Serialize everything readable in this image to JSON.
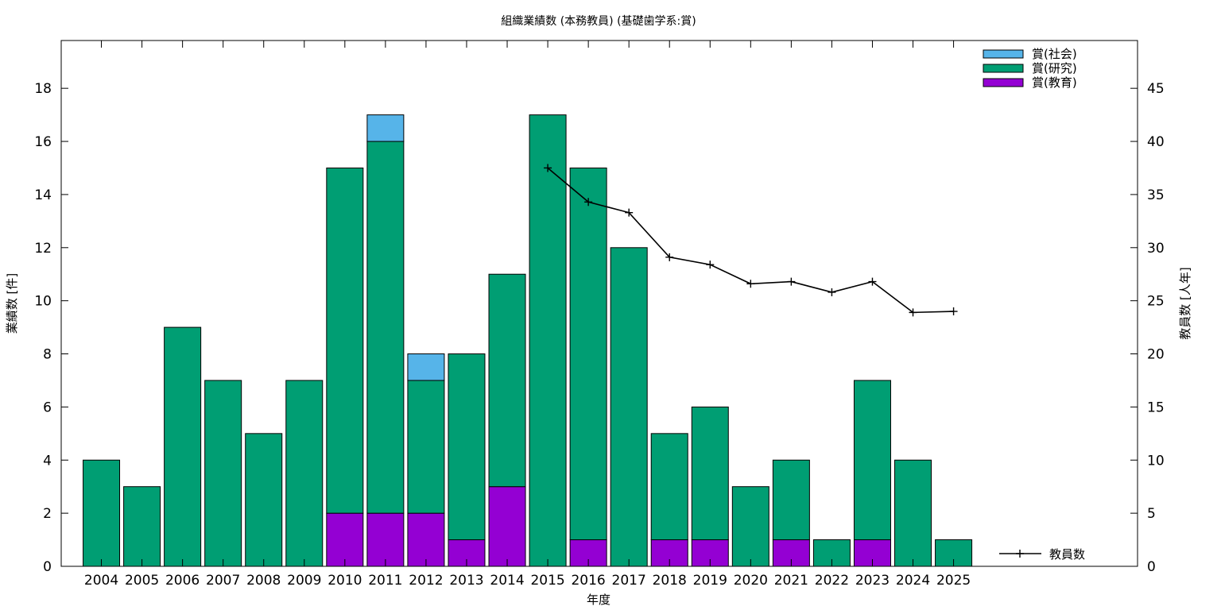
{
  "chart_data": {
    "type": "bar",
    "stacked": true,
    "title": "組織業績数 (本務教員) (基礎歯学系:賞)",
    "xlabel": "年度",
    "ylabel": "業績数 [件]",
    "y2label": "教員数 [人年]",
    "ylim": [
      0,
      19.8
    ],
    "y2lim": [
      0,
      49.5
    ],
    "yticks": [
      0,
      2,
      4,
      6,
      8,
      10,
      12,
      14,
      16,
      18
    ],
    "y2ticks": [
      0,
      5,
      10,
      15,
      20,
      25,
      30,
      35,
      40,
      45
    ],
    "grid": false,
    "legend_position": "top-right",
    "categories": [
      "2004",
      "2005",
      "2006",
      "2007",
      "2008",
      "2009",
      "2010",
      "2011",
      "2012",
      "2013",
      "2014",
      "2015",
      "2016",
      "2017",
      "2018",
      "2019",
      "2020",
      "2021",
      "2022",
      "2023",
      "2024",
      "2025"
    ],
    "series": [
      {
        "name": "賞(教育)",
        "color": "#9400d3",
        "values": [
          0,
          0,
          0,
          0,
          0,
          0,
          2,
          2,
          2,
          1,
          3,
          0,
          1,
          0,
          1,
          1,
          0,
          1,
          0,
          1,
          0,
          0
        ]
      },
      {
        "name": "賞(研究)",
        "color": "#009e73",
        "values": [
          4,
          3,
          9,
          7,
          5,
          7,
          13,
          14,
          5,
          7,
          8,
          17,
          14,
          12,
          4,
          5,
          3,
          3,
          1,
          6,
          4,
          1
        ]
      },
      {
        "name": "賞(社会)",
        "color": "#56b4e9",
        "values": [
          0,
          0,
          0,
          0,
          0,
          0,
          0,
          1,
          1,
          0,
          0,
          0,
          0,
          0,
          0,
          0,
          0,
          0,
          0,
          0,
          0,
          0
        ]
      }
    ],
    "line_series": {
      "name": "教員数",
      "axis": "right",
      "color": "#000000",
      "points": [
        {
          "x": "2015",
          "y": 37.5
        },
        {
          "x": "2016",
          "y": 34.3
        },
        {
          "x": "2017",
          "y": 33.3
        },
        {
          "x": "2018",
          "y": 29.1
        },
        {
          "x": "2019",
          "y": 28.4
        },
        {
          "x": "2020",
          "y": 26.6
        },
        {
          "x": "2021",
          "y": 26.8
        },
        {
          "x": "2022",
          "y": 25.8
        },
        {
          "x": "2023",
          "y": 26.8
        },
        {
          "x": "2024",
          "y": 23.9
        },
        {
          "x": "2025",
          "y": 24.0
        }
      ]
    }
  }
}
